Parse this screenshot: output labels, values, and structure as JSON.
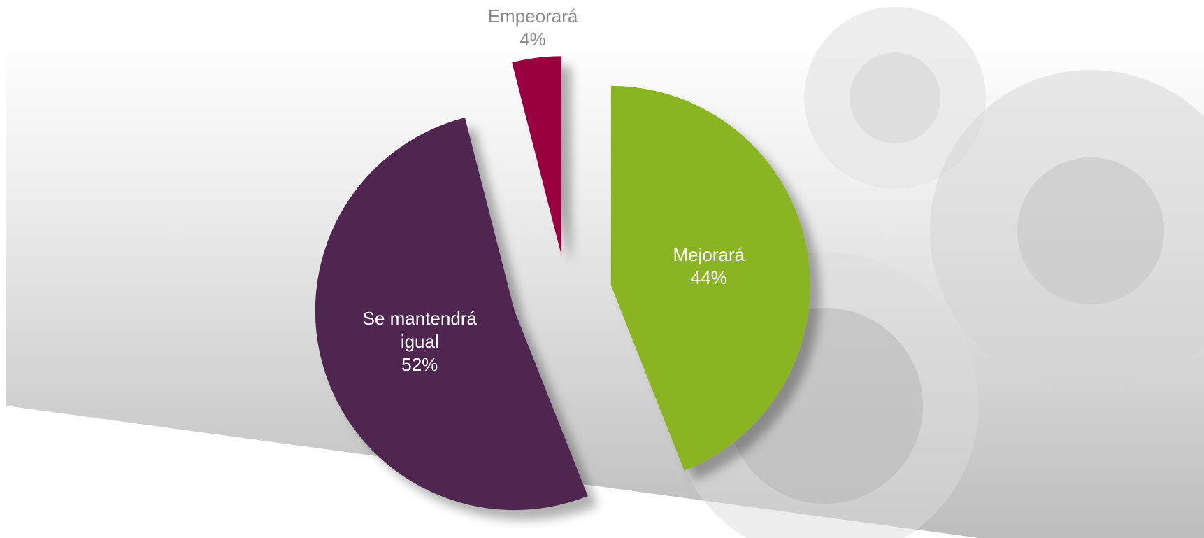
{
  "chart_data": {
    "type": "pie",
    "categories": [
      "Mejorará",
      "Se mantendrá igual",
      "Empeorará"
    ],
    "values": [
      44,
      52,
      4
    ],
    "value_labels": [
      "44%",
      "52%",
      "4%"
    ],
    "colors": [
      "#8ab420",
      "#50264f",
      "#990040"
    ]
  }
}
